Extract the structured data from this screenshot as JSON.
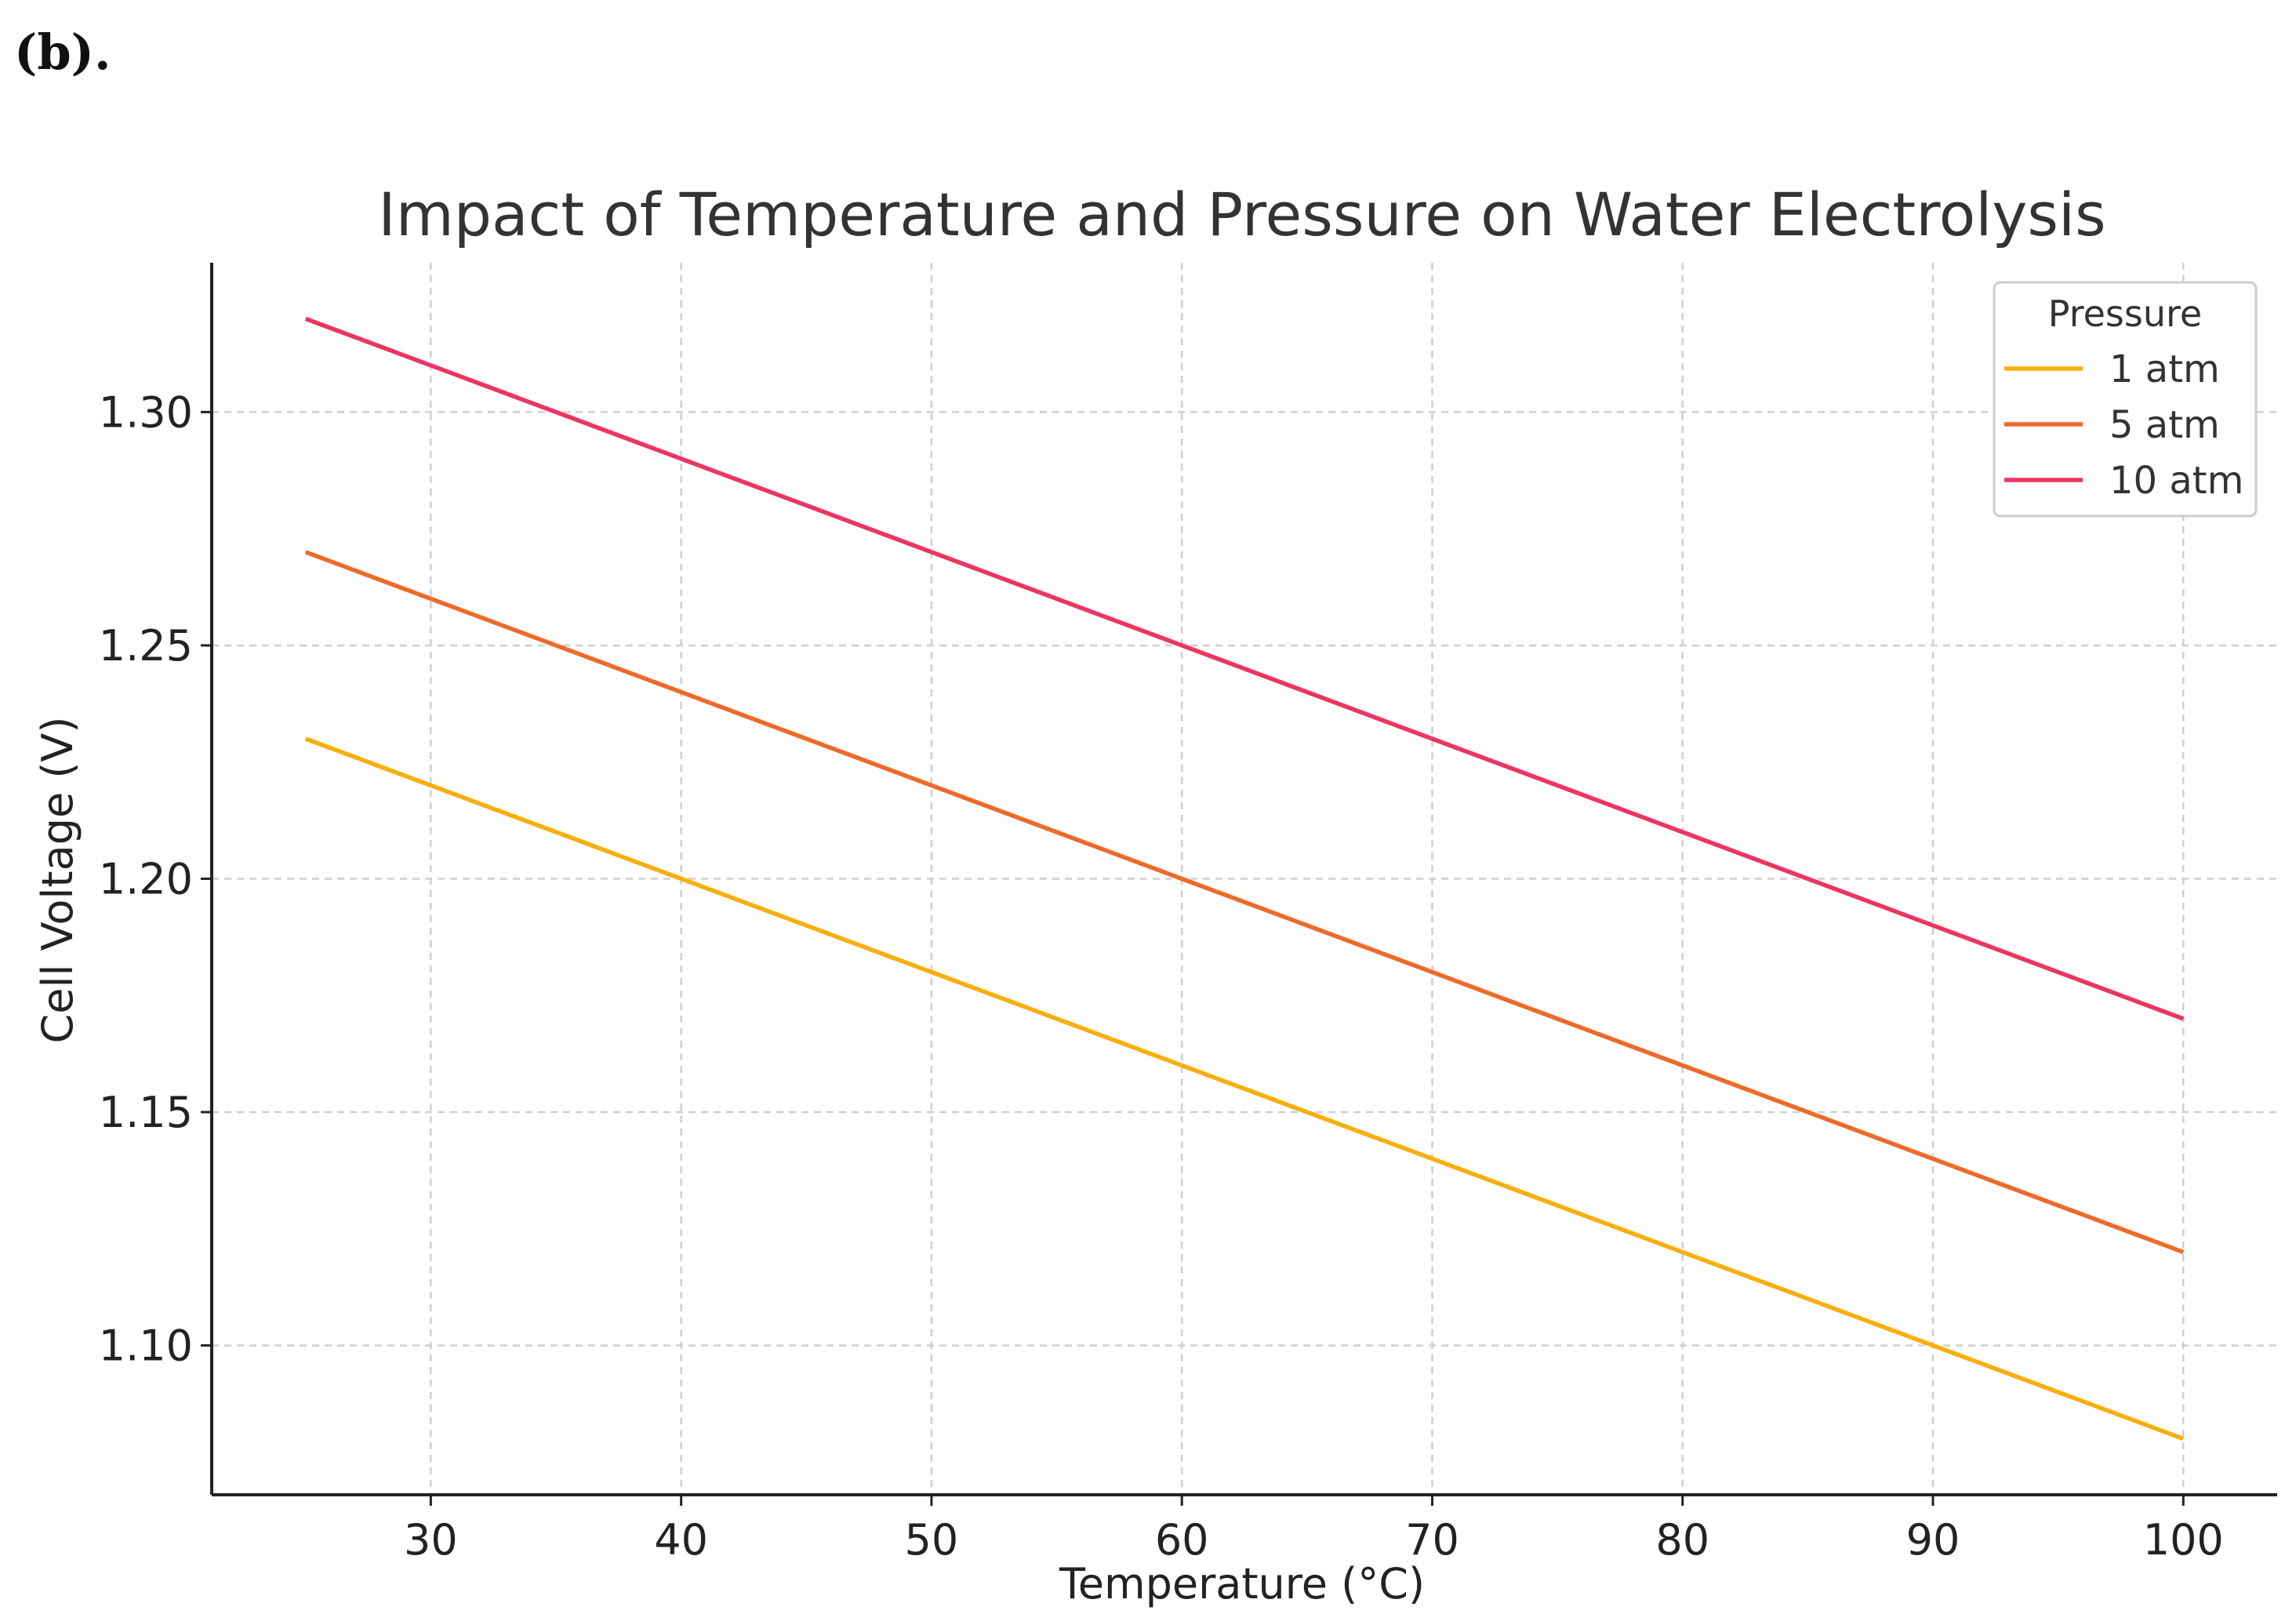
{
  "panel_label": "(b).",
  "chart_data": {
    "type": "line",
    "title": "Impact of Temperature and Pressure on Water Electrolysis",
    "xlabel": "Temperature (°C)",
    "ylabel": "Cell Voltage (V)",
    "xlim": [
      21.25,
      103.75
    ],
    "ylim": [
      1.068,
      1.332
    ],
    "xticks": [
      30,
      40,
      50,
      60,
      70,
      80,
      90,
      100
    ],
    "xtick_labels": [
      "30",
      "40",
      "50",
      "60",
      "70",
      "80",
      "90",
      "100"
    ],
    "yticks": [
      1.1,
      1.15,
      1.2,
      1.25,
      1.3
    ],
    "ytick_labels": [
      "1.10",
      "1.15",
      "1.20",
      "1.25",
      "1.30"
    ],
    "grid": true,
    "legend_title": "Pressure",
    "legend_position": "top-right",
    "series": [
      {
        "name": "1 atm",
        "color": "#F9AE0C",
        "x": [
          25,
          100
        ],
        "y": [
          1.23,
          1.08
        ]
      },
      {
        "name": "5 atm",
        "color": "#EE6A2A",
        "x": [
          25,
          100
        ],
        "y": [
          1.27,
          1.12
        ]
      },
      {
        "name": "10 atm",
        "color": "#EC3560",
        "x": [
          25,
          100
        ],
        "y": [
          1.32,
          1.17
        ]
      }
    ]
  }
}
